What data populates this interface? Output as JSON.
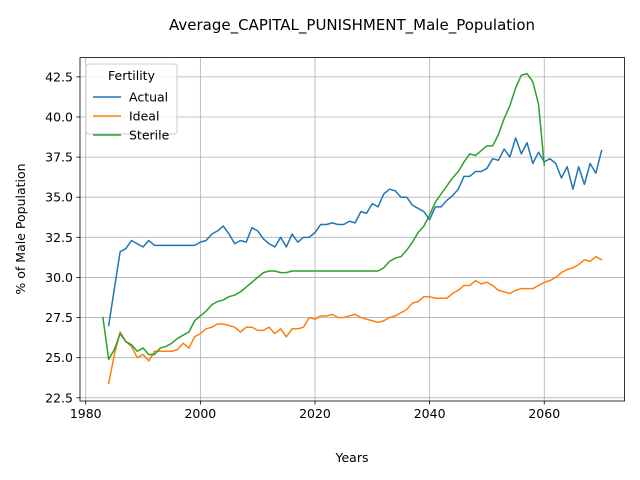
{
  "chart_data": {
    "type": "line",
    "title": "Average_CAPITAL_PUNISHMENT_Male_Population",
    "xlabel": "Years",
    "ylabel": "% of Male Population",
    "xlim": [
      1979,
      2074
    ],
    "ylim": [
      22.3,
      43.7
    ],
    "xticks": [
      1980,
      2000,
      2020,
      2040,
      2060
    ],
    "yticks": [
      22.5,
      25.0,
      27.5,
      30.0,
      32.5,
      35.0,
      37.5,
      40.0,
      42.5
    ],
    "grid": true,
    "legend": {
      "title": "Fertility",
      "position": "top-left"
    },
    "series": [
      {
        "name": "Actual",
        "color": "#1f77b4",
        "x": [
          1984,
          1985,
          1986,
          1987,
          1988,
          1989,
          1990,
          1991,
          1992,
          1993,
          1994,
          1995,
          1996,
          1997,
          1998,
          1999,
          2000,
          2001,
          2002,
          2003,
          2004,
          2005,
          2006,
          2007,
          2008,
          2009,
          2010,
          2011,
          2012,
          2013,
          2014,
          2015,
          2016,
          2017,
          2018,
          2019,
          2020,
          2021,
          2022,
          2023,
          2024,
          2025,
          2026,
          2027,
          2028,
          2029,
          2030,
          2031,
          2032,
          2033,
          2034,
          2035,
          2036,
          2037,
          2038,
          2039,
          2040,
          2041,
          2042,
          2043,
          2044,
          2045,
          2046,
          2047,
          2048,
          2049,
          2050,
          2051,
          2052,
          2053,
          2054,
          2055,
          2056,
          2057,
          2058,
          2059,
          2060,
          2061,
          2062,
          2063,
          2064,
          2065,
          2066,
          2067,
          2068,
          2069,
          2070
        ],
        "values": [
          27.0,
          29.3,
          31.6,
          31.8,
          32.3,
          32.1,
          31.9,
          32.3,
          32.0,
          32.0,
          32.0,
          32.0,
          32.0,
          32.0,
          32.0,
          32.0,
          32.2,
          32.3,
          32.7,
          32.9,
          33.2,
          32.7,
          32.1,
          32.3,
          32.2,
          33.1,
          32.9,
          32.4,
          32.1,
          31.9,
          32.5,
          31.9,
          32.7,
          32.2,
          32.5,
          32.5,
          32.8,
          33.3,
          33.3,
          33.4,
          33.3,
          33.3,
          33.5,
          33.4,
          34.1,
          34.0,
          34.6,
          34.4,
          35.2,
          35.5,
          35.4,
          35.0,
          35.0,
          34.5,
          34.3,
          34.1,
          33.6,
          34.4,
          34.4,
          34.8,
          35.1,
          35.5,
          36.3,
          36.3,
          36.6,
          36.6,
          36.8,
          37.4,
          37.3,
          38.0,
          37.5,
          38.7,
          37.7,
          38.4,
          37.1,
          37.8,
          37.2,
          37.4,
          37.1,
          36.2,
          36.9,
          35.5,
          36.9,
          35.8,
          37.1,
          36.5,
          37.9
        ]
      },
      {
        "name": "Ideal",
        "color": "#ff7f0e",
        "x": [
          1984,
          1985,
          1986,
          1987,
          1988,
          1989,
          1990,
          1991,
          1992,
          1993,
          1994,
          1995,
          1996,
          1997,
          1998,
          1999,
          2000,
          2001,
          2002,
          2003,
          2004,
          2005,
          2006,
          2007,
          2008,
          2009,
          2010,
          2011,
          2012,
          2013,
          2014,
          2015,
          2016,
          2017,
          2018,
          2019,
          2020,
          2021,
          2022,
          2023,
          2024,
          2025,
          2026,
          2027,
          2028,
          2029,
          2030,
          2031,
          2032,
          2033,
          2034,
          2035,
          2036,
          2037,
          2038,
          2039,
          2040,
          2041,
          2042,
          2043,
          2044,
          2045,
          2046,
          2047,
          2048,
          2049,
          2050,
          2051,
          2052,
          2053,
          2054,
          2055,
          2056,
          2057,
          2058,
          2059,
          2060,
          2061,
          2062,
          2063,
          2064,
          2065,
          2066,
          2067,
          2068,
          2069,
          2070
        ],
        "values": [
          23.4,
          25.2,
          26.6,
          26.0,
          25.7,
          25.0,
          25.2,
          24.8,
          25.4,
          25.4,
          25.4,
          25.4,
          25.5,
          25.9,
          25.6,
          26.3,
          26.5,
          26.8,
          26.9,
          27.1,
          27.1,
          27.0,
          26.9,
          26.6,
          26.9,
          26.9,
          26.7,
          26.7,
          26.9,
          26.5,
          26.8,
          26.3,
          26.8,
          26.8,
          26.9,
          27.5,
          27.4,
          27.6,
          27.6,
          27.7,
          27.5,
          27.5,
          27.6,
          27.7,
          27.5,
          27.4,
          27.3,
          27.2,
          27.3,
          27.5,
          27.6,
          27.8,
          28.0,
          28.4,
          28.5,
          28.8,
          28.8,
          28.7,
          28.7,
          28.7,
          29.0,
          29.2,
          29.5,
          29.5,
          29.8,
          29.6,
          29.7,
          29.5,
          29.2,
          29.1,
          29.0,
          29.2,
          29.3,
          29.3,
          29.3,
          29.5,
          29.7,
          29.8,
          30.0,
          30.3,
          30.5,
          30.6,
          30.8,
          31.1,
          31.0,
          31.3,
          31.1
        ]
      },
      {
        "name": "Sterile",
        "color": "#2ca02c",
        "x": [
          1983,
          1984,
          1985,
          1986,
          1987,
          1988,
          1989,
          1990,
          1991,
          1992,
          1993,
          1994,
          1995,
          1996,
          1997,
          1998,
          1999,
          2000,
          2001,
          2002,
          2003,
          2004,
          2005,
          2006,
          2007,
          2008,
          2009,
          2010,
          2011,
          2012,
          2013,
          2014,
          2015,
          2016,
          2017,
          2018,
          2019,
          2020,
          2021,
          2022,
          2023,
          2024,
          2025,
          2026,
          2027,
          2028,
          2029,
          2030,
          2031,
          2032,
          2033,
          2034,
          2035,
          2036,
          2037,
          2038,
          2039,
          2040,
          2041,
          2042,
          2043,
          2044,
          2045,
          2046,
          2047,
          2048,
          2049,
          2050,
          2051,
          2052,
          2053,
          2054,
          2055,
          2056,
          2057,
          2058,
          2059,
          2060
        ],
        "values": [
          27.5,
          24.9,
          25.5,
          26.5,
          26.0,
          25.8,
          25.4,
          25.6,
          25.2,
          25.2,
          25.6,
          25.7,
          25.9,
          26.2,
          26.4,
          26.6,
          27.3,
          27.6,
          27.9,
          28.3,
          28.5,
          28.6,
          28.8,
          28.9,
          29.1,
          29.4,
          29.7,
          30.0,
          30.3,
          30.4,
          30.4,
          30.3,
          30.3,
          30.4,
          30.4,
          30.4,
          30.4,
          30.4,
          30.4,
          30.4,
          30.4,
          30.4,
          30.4,
          30.4,
          30.4,
          30.4,
          30.4,
          30.4,
          30.4,
          30.6,
          31.0,
          31.2,
          31.3,
          31.7,
          32.2,
          32.8,
          33.2,
          33.9,
          34.7,
          35.2,
          35.7,
          36.2,
          36.6,
          37.2,
          37.7,
          37.6,
          37.9,
          38.2,
          38.2,
          38.9,
          39.9,
          40.7,
          41.8,
          42.6,
          42.7,
          42.2,
          40.8,
          37.0
        ]
      }
    ]
  }
}
